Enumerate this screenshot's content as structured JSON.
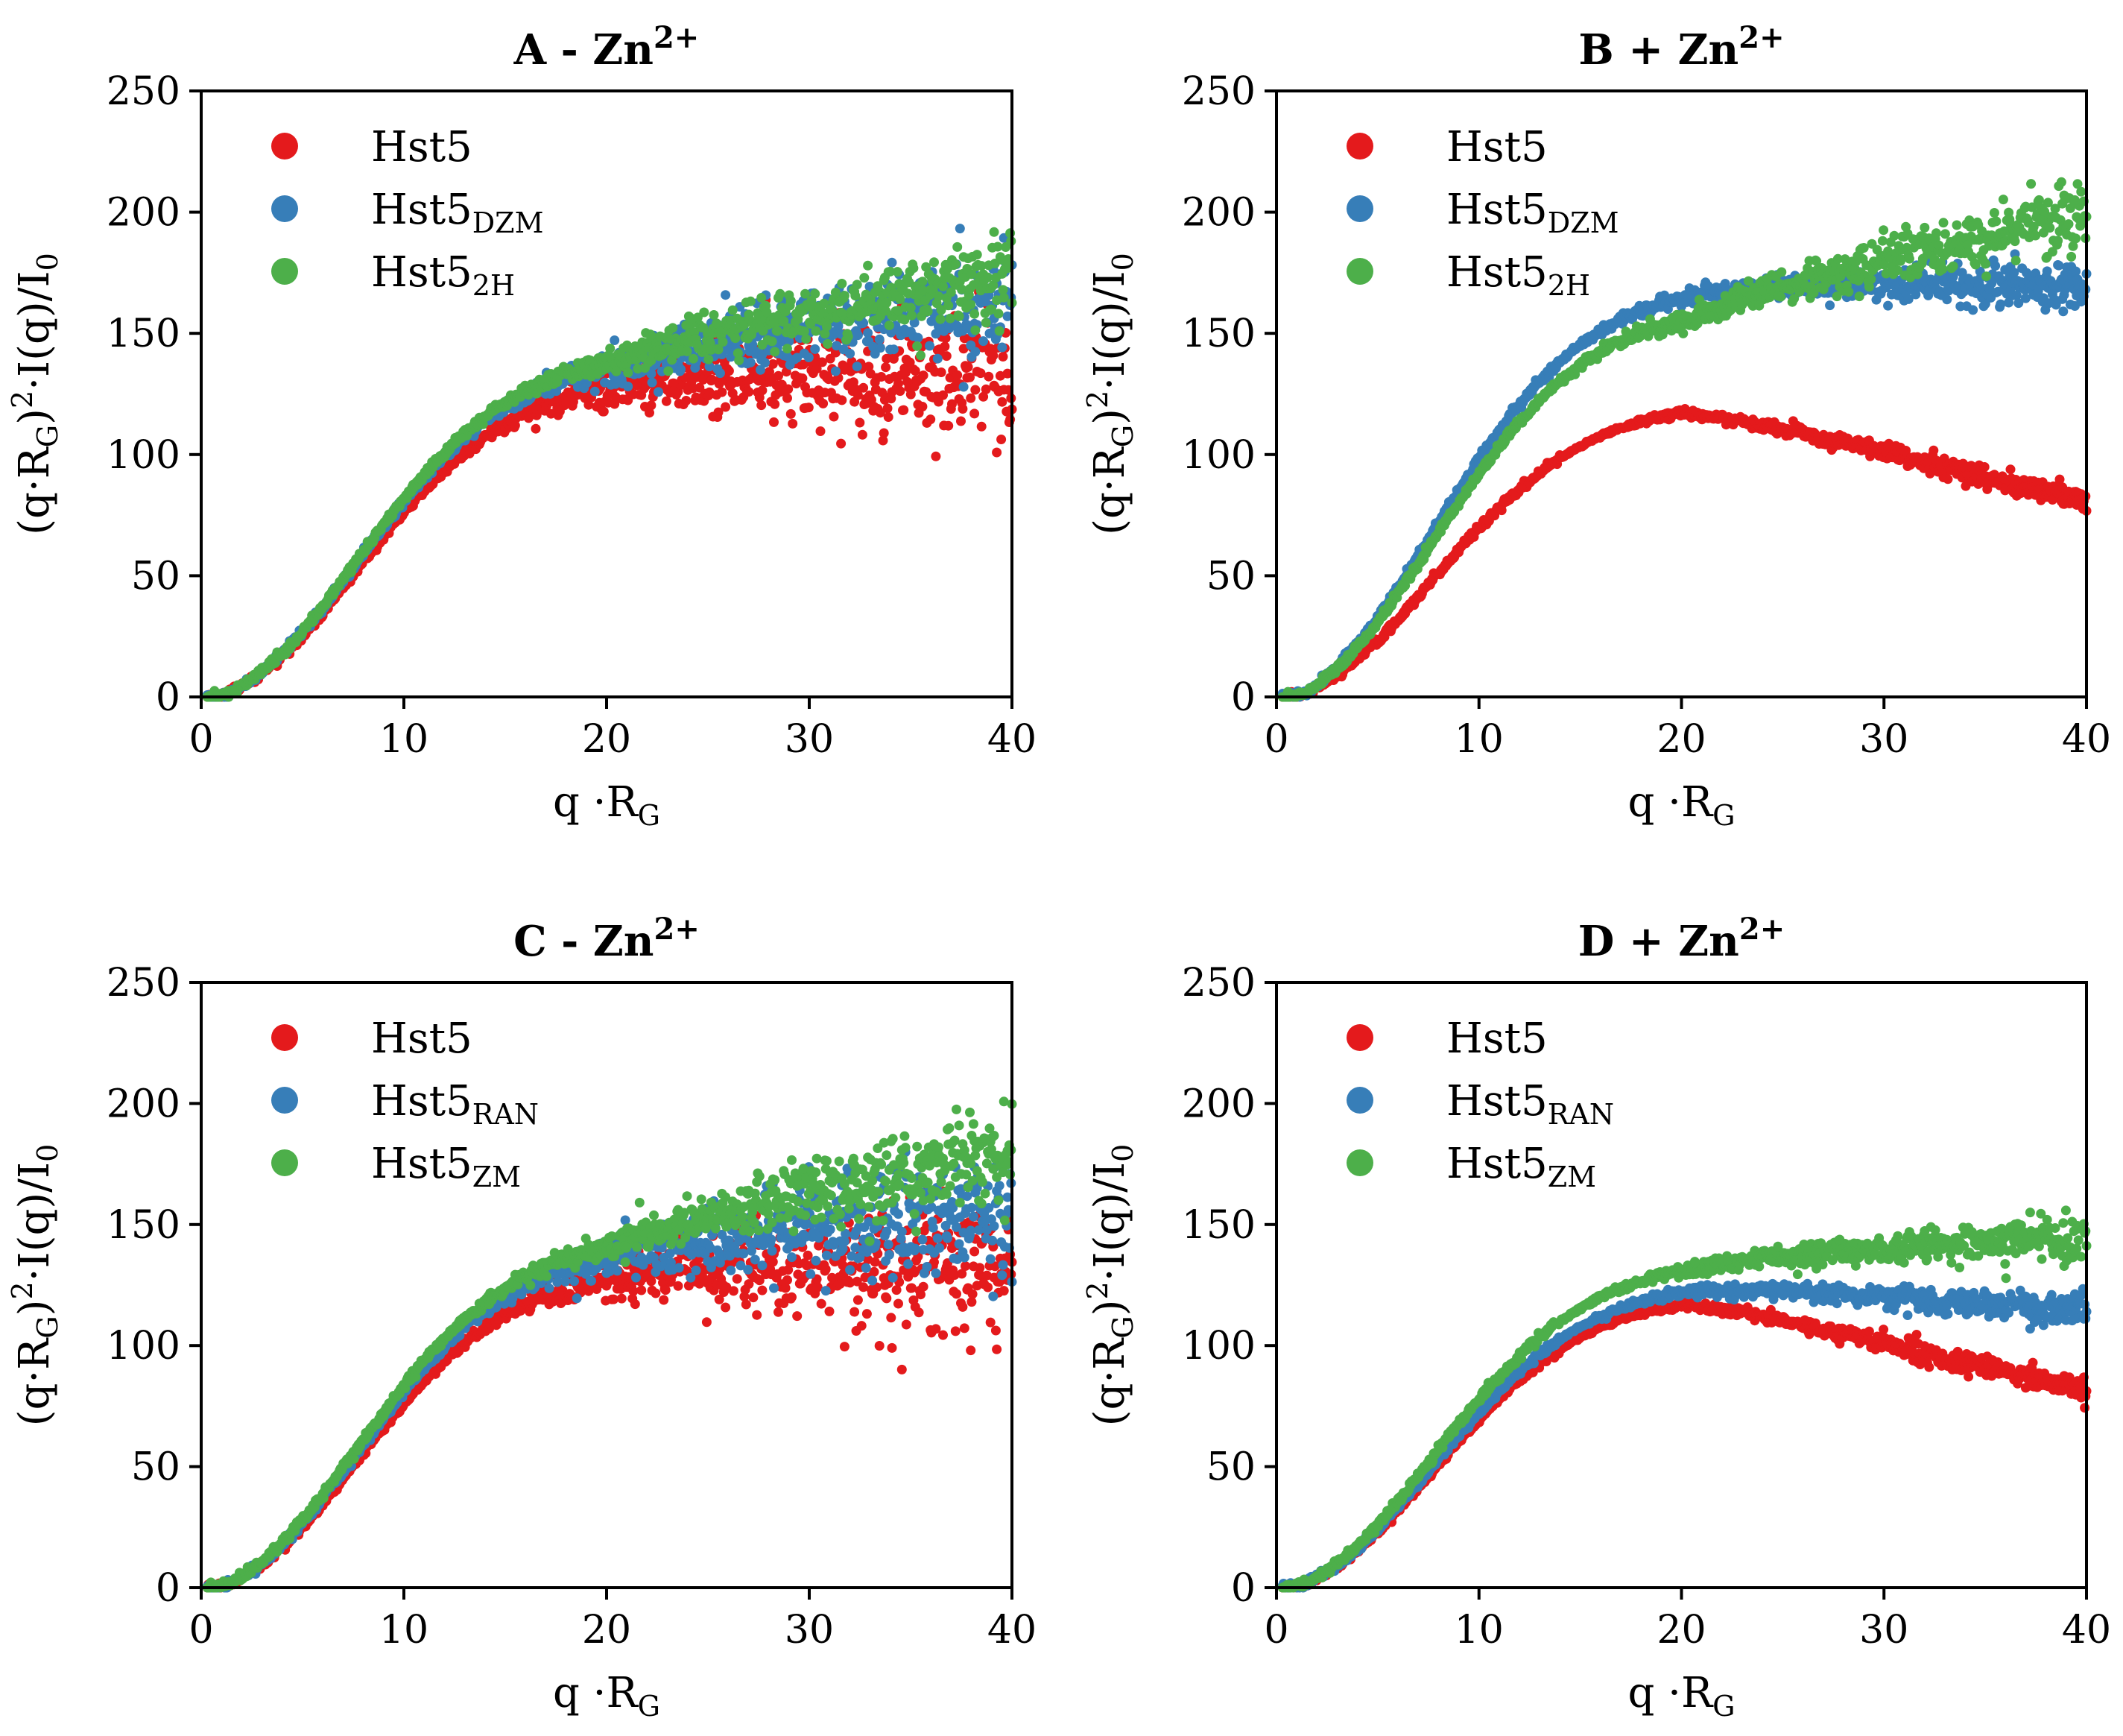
{
  "chart_data": [
    {
      "type": "scatter",
      "title": "A - Zn",
      "title_sup": "2+",
      "xlabel": "q ·R",
      "xlabel_sub": "G",
      "ylabel": "(q·R",
      "ylabel_sub": "G",
      "ylabel_rest": ")",
      "ylabel_sup": "2",
      "ylabel_tail": "·I(q)/I",
      "ylabel_tail_sub": "0",
      "xlim": [
        0,
        40
      ],
      "ylim": [
        0,
        250
      ],
      "xticks": [
        "0",
        "10",
        "20",
        "30",
        "40"
      ],
      "yticks": [
        "0",
        "50",
        "100",
        "150",
        "200",
        "250"
      ],
      "legend_position": "upper-left",
      "series": [
        {
          "name": "Hst5",
          "name_sub": "",
          "color": "#e41a1c",
          "plateau": 132,
          "decay": 0,
          "noise": 18
        },
        {
          "name": "Hst5",
          "name_sub": "DZM",
          "color": "#377eb8",
          "plateau": 140,
          "decay": -1.2,
          "noise": 14
        },
        {
          "name": "Hst5",
          "name_sub": "2H",
          "color": "#4daf4a",
          "plateau": 142,
          "decay": -1.6,
          "noise": 10
        }
      ]
    },
    {
      "type": "scatter",
      "title": "B + Zn",
      "title_sup": "2+",
      "xlabel": "q ·R",
      "xlabel_sub": "G",
      "ylabel": "(q·R",
      "ylabel_sub": "G",
      "ylabel_rest": ")",
      "ylabel_sup": "2",
      "ylabel_tail": "·I(q)/I",
      "ylabel_tail_sub": "0",
      "xlim": [
        0,
        40
      ],
      "ylim": [
        0,
        250
      ],
      "xticks": [
        "0",
        "10",
        "20",
        "30",
        "40"
      ],
      "yticks": [
        "0",
        "50",
        "100",
        "150",
        "200",
        "250"
      ],
      "legend_position": "upper-left",
      "series": [
        {
          "name": "Hst5",
          "name_sub": "",
          "color": "#e41a1c",
          "plateau": 121,
          "decay": 2.0,
          "noise": 3
        },
        {
          "name": "Hst5",
          "name_sub": "DZM",
          "color": "#377eb8",
          "plateau": 170,
          "decay": 0,
          "noise": 6
        },
        {
          "name": "Hst5",
          "name_sub": "2H",
          "color": "#4daf4a",
          "plateau": 160,
          "decay": -2.0,
          "noise": 8
        }
      ]
    },
    {
      "type": "scatter",
      "title": "C - Zn",
      "title_sup": "2+",
      "xlabel": "q ·R",
      "xlabel_sub": "G",
      "ylabel": "(q·R",
      "ylabel_sub": "G",
      "ylabel_rest": ")",
      "ylabel_sup": "2",
      "ylabel_tail": "·I(q)/I",
      "ylabel_tail_sub": "0",
      "xlim": [
        0,
        40
      ],
      "ylim": [
        0,
        250
      ],
      "xticks": [
        "0",
        "10",
        "20",
        "30",
        "40"
      ],
      "yticks": [
        "0",
        "50",
        "100",
        "150",
        "200",
        "250"
      ],
      "legend_position": "upper-left",
      "series": [
        {
          "name": "Hst5",
          "name_sub": "",
          "color": "#e41a1c",
          "plateau": 132,
          "decay": 0,
          "noise": 18
        },
        {
          "name": "Hst5",
          "name_sub": "RAN",
          "color": "#377eb8",
          "plateau": 140,
          "decay": -0.8,
          "noise": 16
        },
        {
          "name": "Hst5",
          "name_sub": "ZM",
          "color": "#4daf4a",
          "plateau": 145,
          "decay": -1.8,
          "noise": 12
        }
      ]
    },
    {
      "type": "scatter",
      "title": "D + Zn",
      "title_sup": "2+",
      "xlabel": "q ·R",
      "xlabel_sub": "G",
      "ylabel": "(q·R",
      "ylabel_sub": "G",
      "ylabel_rest": ")",
      "ylabel_sup": "2",
      "ylabel_tail": "·I(q)/I",
      "ylabel_tail_sub": "0",
      "xlim": [
        0,
        40
      ],
      "ylim": [
        0,
        250
      ],
      "xticks": [
        "0",
        "10",
        "20",
        "30",
        "40"
      ],
      "yticks": [
        "0",
        "50",
        "100",
        "150",
        "200",
        "250"
      ],
      "legend_position": "upper-left",
      "series": [
        {
          "name": "Hst5",
          "name_sub": "",
          "color": "#e41a1c",
          "plateau": 121,
          "decay": 2.0,
          "noise": 3
        },
        {
          "name": "Hst5",
          "name_sub": "RAN",
          "color": "#377eb8",
          "plateau": 126,
          "decay": 0.6,
          "noise": 4
        },
        {
          "name": "Hst5",
          "name_sub": "ZM",
          "color": "#4daf4a",
          "plateau": 135,
          "decay": -0.5,
          "noise": 5
        }
      ]
    }
  ]
}
